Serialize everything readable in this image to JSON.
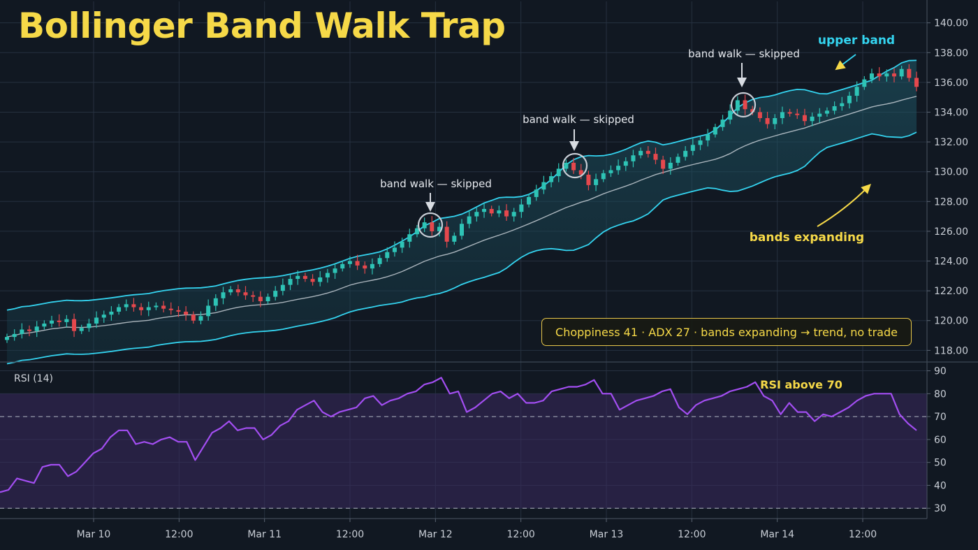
{
  "title": "Bollinger Band Walk Trap",
  "annotations": {
    "walk1": "band walk — skipped",
    "walk2": "band walk — skipped",
    "walk3": "band walk — skipped",
    "upper_band": "upper band",
    "bands_expanding": "bands expanding",
    "info_box": "Choppiness 41 · ADX 27 · bands expanding → trend, no trade",
    "rsi_label": "RSI (14)",
    "rsi_above": "RSI above 70"
  },
  "colors": {
    "background": "#111822",
    "band_line": "#34d4f0",
    "band_fill": "#1f5a6a",
    "middle_band": "#c4ccd4",
    "candle_up": "#2ec4b6",
    "candle_down": "#e5484d",
    "rsi_line": "#a34ef2",
    "rsi_zone": "#3a2a5e",
    "accent_yellow": "#f6d948",
    "grid": "#263140",
    "text": "#c9ced6"
  },
  "chart_data": [
    {
      "type": "candlestick",
      "title": "Bollinger Band Walk Trap",
      "x_ticks": [
        "Mar 10",
        "12:00",
        "Mar 11",
        "12:00",
        "Mar 12",
        "12:00",
        "Mar 13",
        "12:00",
        "Mar 14",
        "12:00"
      ],
      "y_ticks": [
        "140.00",
        "138.00",
        "136.00",
        "134.00",
        "132.00",
        "130.00",
        "128.00",
        "126.00",
        "124.00",
        "122.00",
        "120.00",
        "118.00"
      ],
      "ylim": [
        117.5,
        140.5
      ],
      "close": [
        118.9,
        119.1,
        119.4,
        119.3,
        119.6,
        119.8,
        120.0,
        119.9,
        120.1,
        119.3,
        119.5,
        119.8,
        120.2,
        120.4,
        120.6,
        120.9,
        121.1,
        120.9,
        120.7,
        120.9,
        121.0,
        120.8,
        120.7,
        120.6,
        120.4,
        120.0,
        120.3,
        121.0,
        121.5,
        121.9,
        122.1,
        121.9,
        121.7,
        121.6,
        121.3,
        121.6,
        122.0,
        122.4,
        122.8,
        123.0,
        122.8,
        122.6,
        122.9,
        123.2,
        123.5,
        123.8,
        124.0,
        123.7,
        123.5,
        123.8,
        124.2,
        124.6,
        124.9,
        125.3,
        125.8,
        126.2,
        126.6,
        126.0,
        126.3,
        125.3,
        125.7,
        126.5,
        127.0,
        127.3,
        127.5,
        127.2,
        127.4,
        127.0,
        127.3,
        127.8,
        128.3,
        128.8,
        129.3,
        129.7,
        130.2,
        130.6,
        130.1,
        129.8,
        129.1,
        129.5,
        129.9,
        130.1,
        130.4,
        130.7,
        131.1,
        131.4,
        131.2,
        130.8,
        130.2,
        130.6,
        131.0,
        131.4,
        131.8,
        132.1,
        132.5,
        133.0,
        133.5,
        134.1,
        134.8,
        134.2,
        134.0,
        133.6,
        133.2,
        133.6,
        134.0,
        133.9,
        133.8,
        133.4,
        133.7,
        133.9,
        134.1,
        134.4,
        134.6,
        135.1,
        135.7,
        136.2,
        136.6,
        136.4,
        136.6,
        136.4,
        136.9,
        136.3,
        135.7
      ]
    },
    {
      "type": "line",
      "title": "RSI (14)",
      "y_ticks": [
        "90",
        "80",
        "70",
        "60",
        "50",
        "40",
        "30"
      ],
      "ylim": [
        25.5,
        92
      ],
      "guides": [
        70,
        30
      ],
      "shaded_range": [
        30,
        80
      ],
      "values": [
        37,
        38,
        43,
        42,
        41,
        48,
        49,
        49,
        44,
        46,
        50,
        54,
        56,
        61,
        64,
        64,
        58,
        59,
        58,
        60,
        61,
        59,
        59,
        51,
        57,
        63,
        65,
        68,
        64,
        65,
        65,
        60,
        62,
        66,
        68,
        73,
        75,
        77,
        72,
        70,
        72,
        73,
        74,
        78,
        79,
        75,
        77,
        78,
        80,
        81,
        84,
        85,
        87,
        80,
        81,
        72,
        74,
        77,
        80,
        81,
        78,
        80,
        76,
        76,
        77,
        81,
        82,
        83,
        83,
        84,
        86,
        80,
        80,
        73,
        75,
        77,
        78,
        79,
        81,
        82,
        74,
        71,
        75,
        77,
        78,
        79,
        81,
        82,
        83,
        85,
        79,
        77,
        71,
        76,
        72,
        72,
        68,
        71,
        70,
        72,
        74,
        77,
        79,
        80,
        80,
        80,
        71,
        67,
        64
      ]
    }
  ]
}
